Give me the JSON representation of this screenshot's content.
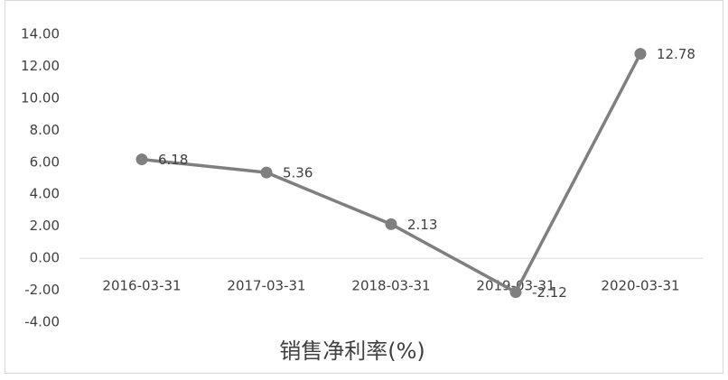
{
  "chart_data": {
    "type": "line",
    "title": "销售净利率(%)",
    "categories": [
      "2016-03-31",
      "2017-03-31",
      "2018-03-31",
      "2019-03-31",
      "2020-03-31"
    ],
    "series": [
      {
        "name": "销售净利率(%)",
        "color": "#7f7f7f",
        "values": [
          6.18,
          5.36,
          2.13,
          -2.12,
          12.78
        ]
      }
    ],
    "ylim": [
      -4,
      14
    ],
    "yticks": [
      {
        "value": -4,
        "label": "-4.00"
      },
      {
        "value": -2,
        "label": "-2.00"
      },
      {
        "value": 0,
        "label": "0.00"
      },
      {
        "value": 2,
        "label": "2.00"
      },
      {
        "value": 4,
        "label": "4.00"
      },
      {
        "value": 6,
        "label": "6.00"
      },
      {
        "value": 8,
        "label": "8.00"
      },
      {
        "value": 10,
        "label": "10.00"
      },
      {
        "value": 12,
        "label": "12.00"
      },
      {
        "value": 14,
        "label": "14.00"
      }
    ],
    "grid": false
  }
}
